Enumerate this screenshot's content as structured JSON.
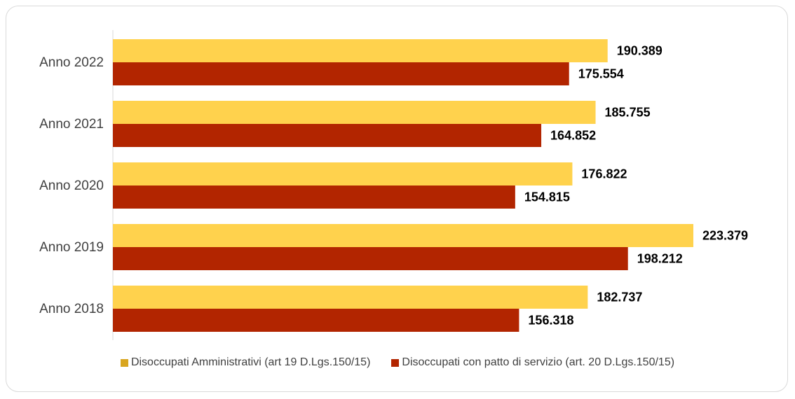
{
  "chart_data": {
    "type": "bar",
    "orientation": "horizontal",
    "categories": [
      "Anno 2022",
      "Anno 2021",
      "Anno 2020",
      "Anno 2019",
      "Anno 2018"
    ],
    "series": [
      {
        "name": "Disoccupati Amministrativi (art 19 D.Lgs.150/15)",
        "color": "#FFD24D",
        "values": [
          190389,
          185755,
          176822,
          223379,
          182737
        ],
        "labels": [
          "190.389",
          "185.755",
          "176.822",
          "223.379",
          "182.737"
        ]
      },
      {
        "name": "Disoccupati con patto di servizio (art. 20 D.Lgs.150/15)",
        "color": "#B22500",
        "values": [
          175554,
          164852,
          154815,
          198212,
          156318
        ],
        "labels": [
          "175.554",
          "164.852",
          "154.815",
          "198.212",
          "156.318"
        ]
      }
    ],
    "xlim": [
      0,
      250000
    ],
    "grid": false,
    "legend_position": "bottom",
    "legend_swatch_colors": [
      "#D9A620",
      "#B22500"
    ]
  }
}
